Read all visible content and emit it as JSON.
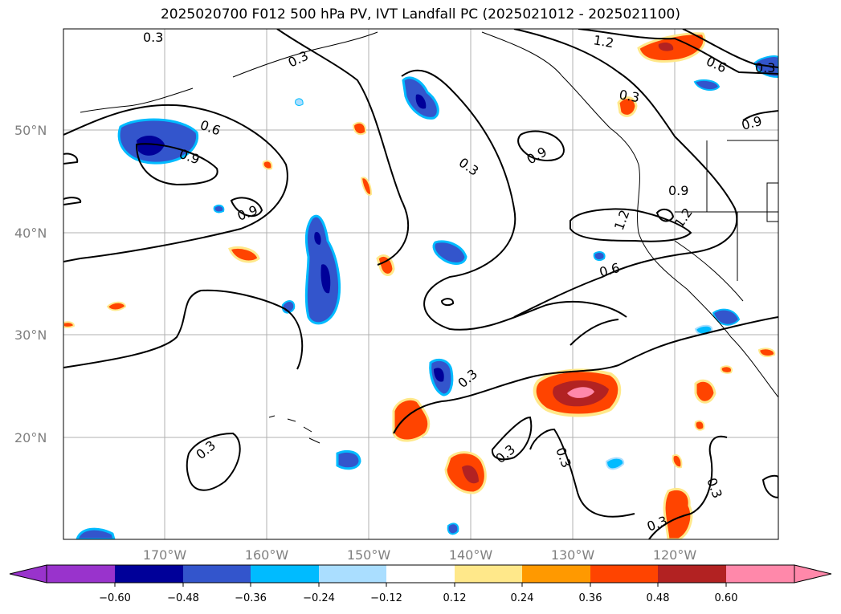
{
  "title": "2025020700 F012 500 hPa PV, IVT Landfall PC (2025021012 - 2025021100)",
  "lat_labels": [
    "50°N",
    "40°N",
    "30°N",
    "20°N"
  ],
  "lon_labels": [
    "170°W",
    "160°W",
    "150°W",
    "140°W",
    "130°W",
    "120°W"
  ],
  "contour_labels": [
    "0.3",
    "0.3",
    "0.6",
    "0.9",
    "0.9",
    "0.3",
    "0.9",
    "0.3",
    "0.6",
    "0.9",
    "1.2",
    "0.9",
    "1.2",
    "1.2",
    "0.6",
    "0.3",
    "0.3",
    "0.3",
    "0.3",
    "0.3",
    "0.3",
    "0.3"
  ],
  "colorbar": {
    "ticks": [
      "−0.60",
      "−0.48",
      "−0.36",
      "−0.24",
      "−0.12",
      "0.12",
      "0.24",
      "0.36",
      "0.48",
      "0.60"
    ],
    "colors": [
      "#9933cc",
      "#000099",
      "#3355cc",
      "#00bbff",
      "#aadeff",
      "#ffffff",
      "#ffe88a",
      "#ff9900",
      "#ff4400",
      "#b22222",
      "#ff88aa"
    ]
  }
}
